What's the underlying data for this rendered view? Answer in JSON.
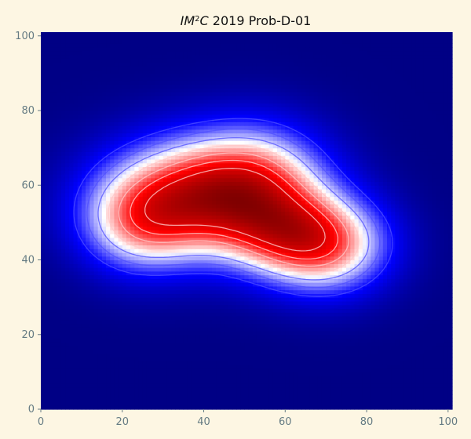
{
  "chart_data": {
    "type": "heatmap",
    "title": {
      "prefix": "IM",
      "superscript": "2",
      "suffix_italic": "C",
      "rest": " 2019 Prob-D-01"
    },
    "xlabel": "",
    "ylabel": "",
    "xlim": [
      0,
      101
    ],
    "ylim": [
      0,
      101
    ],
    "x_ticks": [
      0,
      20,
      40,
      60,
      80,
      100
    ],
    "y_ticks": [
      0,
      20,
      40,
      60,
      80,
      100
    ],
    "grid": false,
    "colormap": "seismic",
    "colorbar": false,
    "contours": true,
    "grid_resolution": 101,
    "field_components": [
      {
        "center": [
          38,
          57
        ],
        "spread": [
          16,
          11
        ],
        "weight": 1.0
      },
      {
        "center": [
          54,
          61
        ],
        "spread": [
          12,
          11
        ],
        "weight": 0.55
      },
      {
        "center": [
          70,
          44
        ],
        "spread": [
          11,
          9
        ],
        "weight": 0.82
      },
      {
        "center": [
          24,
          49
        ],
        "spread": [
          10,
          9
        ],
        "weight": 0.48
      },
      {
        "center": [
          58,
          47
        ],
        "spread": [
          10,
          8
        ],
        "weight": 0.35
      }
    ],
    "contour_levels": [
      0.1,
      0.2,
      0.3,
      0.4,
      0.5,
      0.6,
      0.7,
      0.8
    ],
    "colors": {
      "background": "#fdf6e3",
      "tick_text": "#657b83",
      "low": "#00004c",
      "mid": "#ffffff",
      "high": "#800000"
    }
  }
}
